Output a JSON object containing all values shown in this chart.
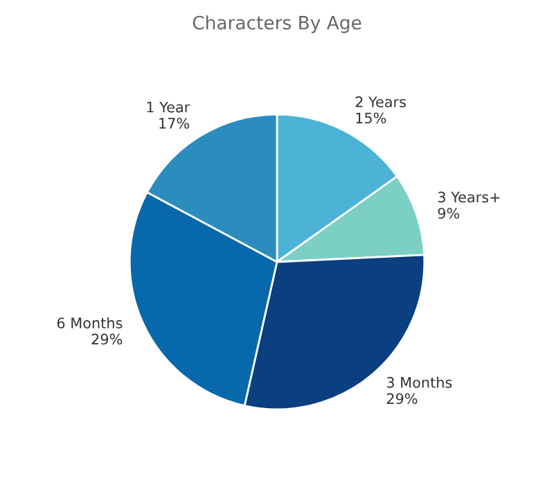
{
  "chart_data": {
    "type": "pie",
    "title": "Characters By Age",
    "categories": [
      "2 Years",
      "3 Years+",
      "3 Months",
      "6 Months",
      "1 Year"
    ],
    "values": [
      15,
      9,
      29,
      29,
      17
    ],
    "value_labels": [
      "15%",
      "9%",
      "29%",
      "29%",
      "17%"
    ],
    "colors": [
      "#4db3d6",
      "#7ccfc4",
      "#0a3f80",
      "#0868ac",
      "#2b8cbe"
    ]
  }
}
